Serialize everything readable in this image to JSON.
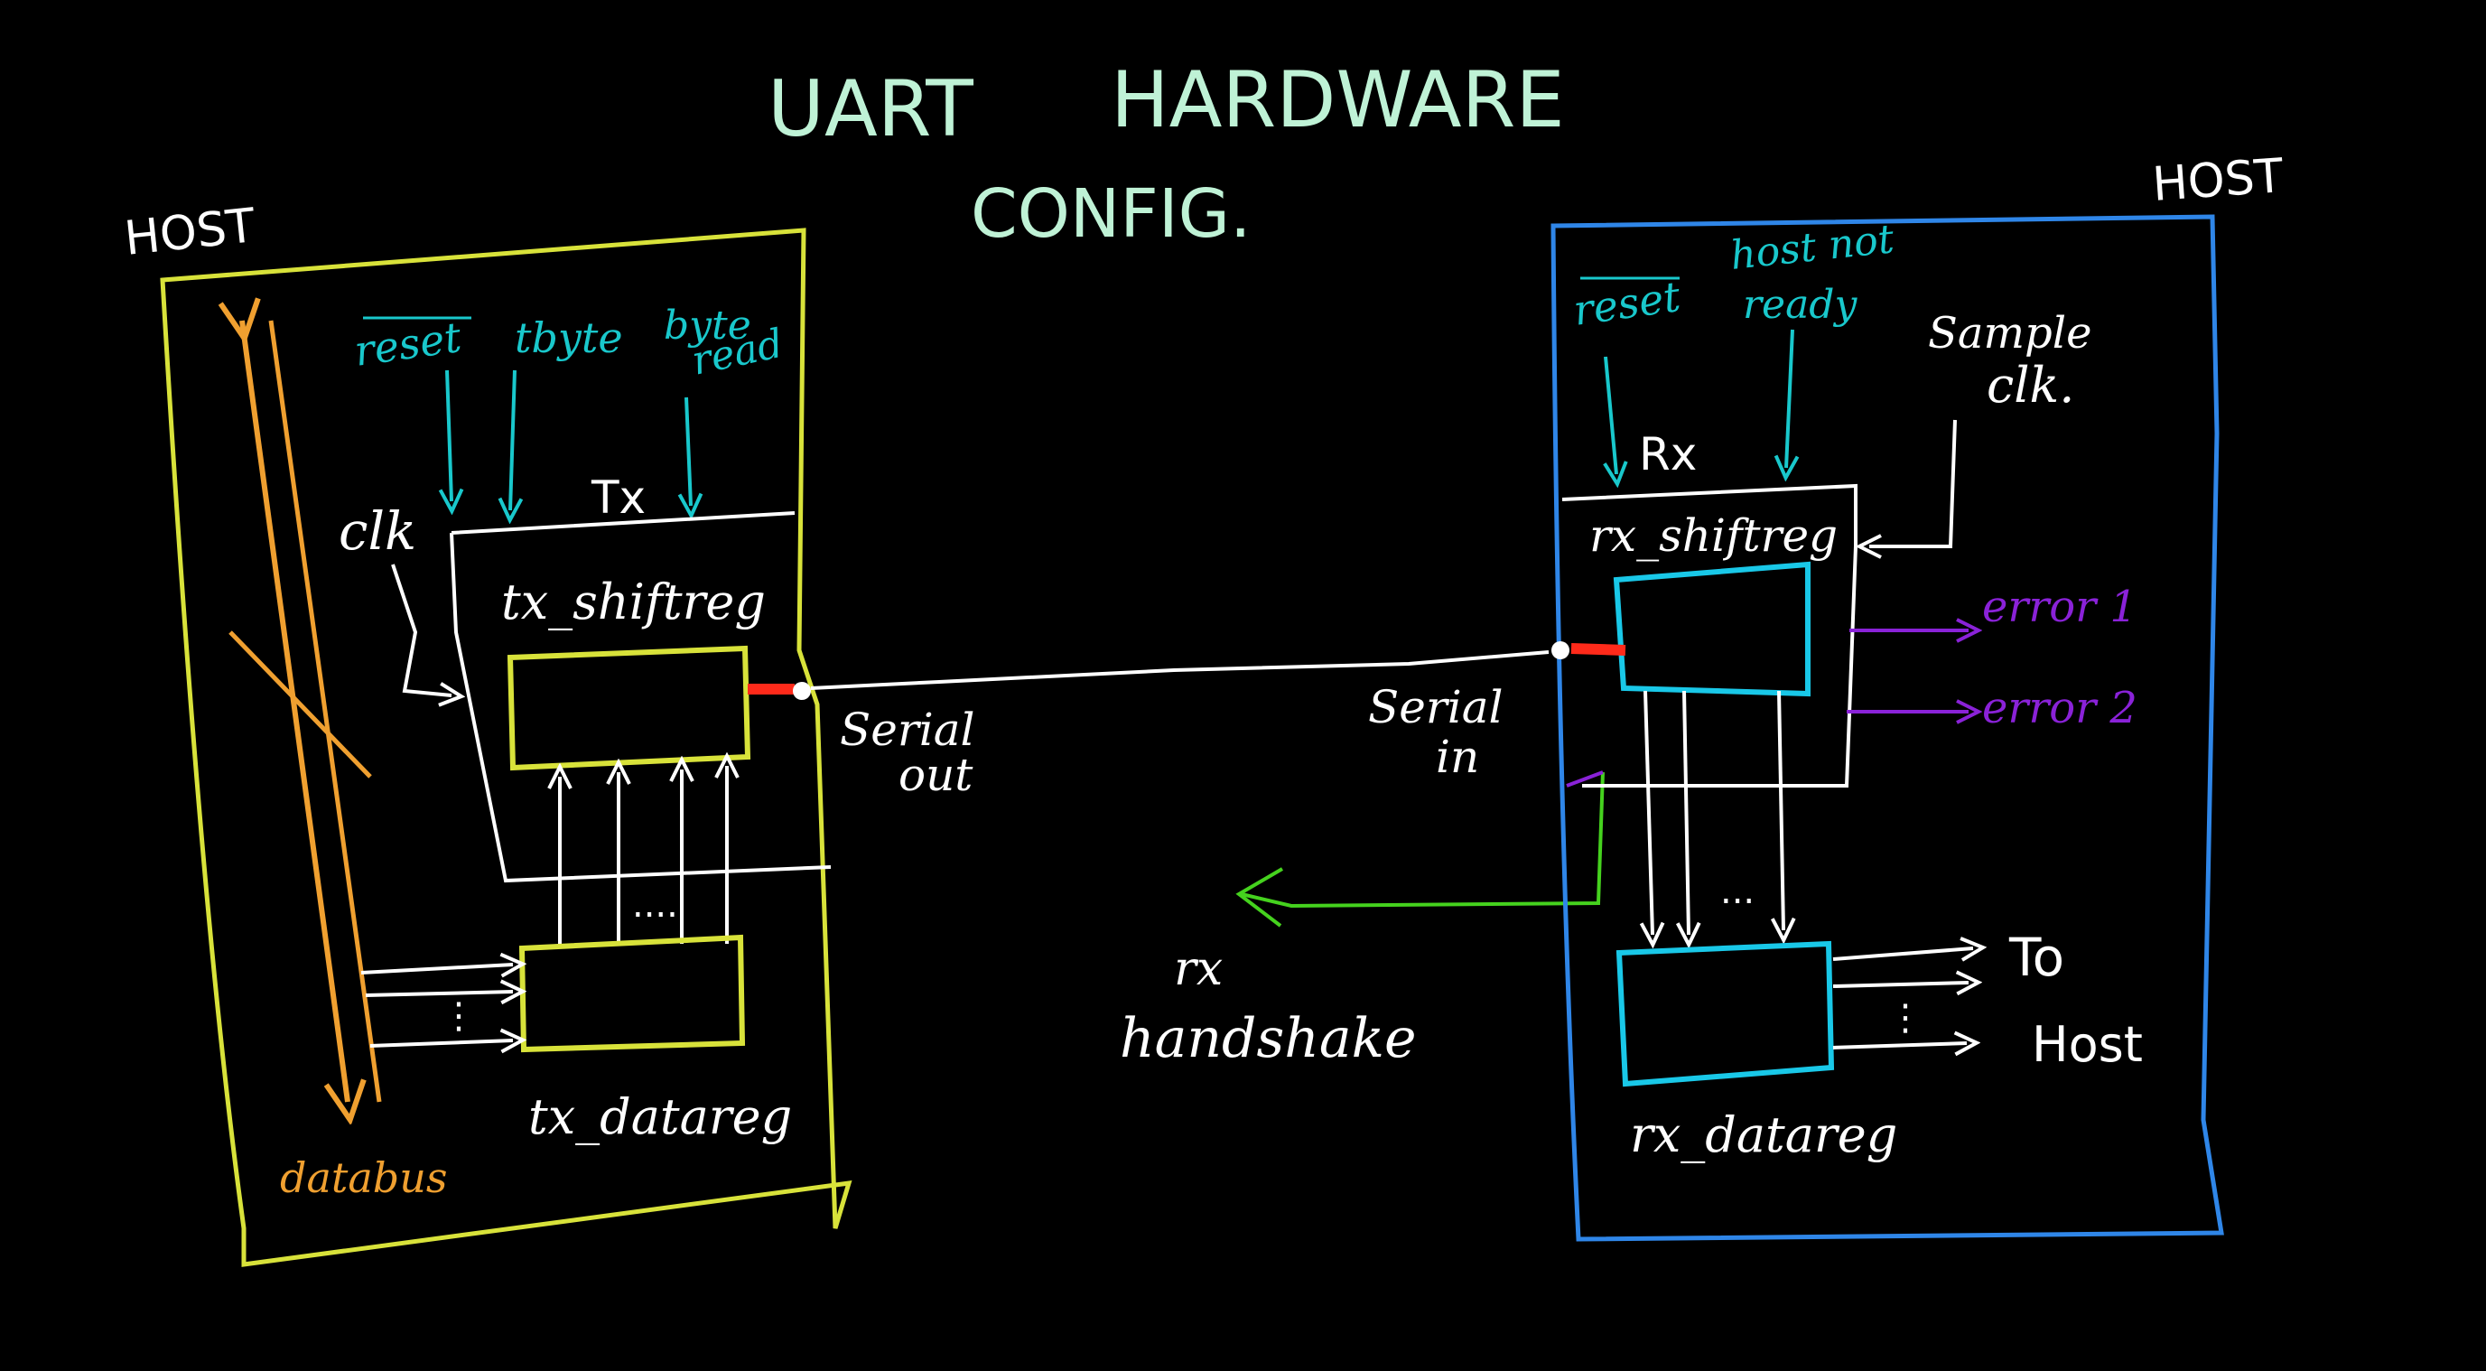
{
  "title": {
    "line1_left": "UART",
    "line1_right": "HARDWARE",
    "line2": "CONFIG."
  },
  "colors": {
    "background": "#000000",
    "title": "#bff2d6",
    "tx_host": "#d8e23a",
    "rx_host": "#2f86e8",
    "control": "#19c8cc",
    "databus": "#f0a030",
    "wire": "#ffffff",
    "error": "#8a22d8",
    "handshake": "#45d21e",
    "serial_port": "#ff2a1a"
  },
  "tx_side": {
    "host_label": "HOST",
    "signals": {
      "reset": "reset",
      "tbyte": "tbyte",
      "byte_read_1": "byte",
      "byte_read_2": "read"
    },
    "clk_label": "clk",
    "block_label": "Tx",
    "shiftreg_label": "tx_shiftreg",
    "dots_shift": "....",
    "dots_data": "⋮",
    "datareg_label": "tx_datareg",
    "databus_label": "databus"
  },
  "link": {
    "serial_out_1": "Serial",
    "serial_out_2": "out",
    "serial_in_1": "Serial",
    "serial_in_2": "in",
    "handshake_1": "rx",
    "handshake_2": "handshake"
  },
  "rx_side": {
    "host_label": "HOST",
    "signals": {
      "reset": "reset",
      "host_not_ready_1": "host not",
      "host_not_ready_2": "ready"
    },
    "sample_clk_1": "Sample",
    "sample_clk_2": "clk.",
    "block_label": "Rx",
    "shiftreg_label": "rx_shiftreg",
    "error1": "error 1",
    "error2": "error 2",
    "dots_shift": "...",
    "dots_out": "⋮",
    "to_host_1": "To",
    "to_host_2": "Host",
    "datareg_label": "rx_datareg"
  }
}
